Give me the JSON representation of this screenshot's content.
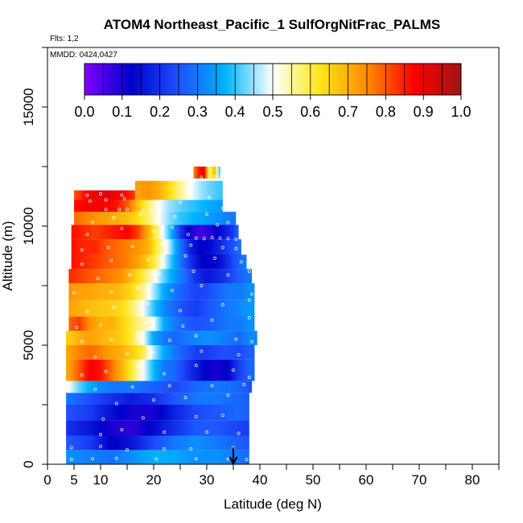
{
  "chart_data": {
    "type": "heatmap",
    "title": "ATOM4 Northeast_Pacific_1 SulfOrgNitFrac_PALMS",
    "flights_note": "Flts: 1,2",
    "dates_note": "MMDD: 0424,0427",
    "xlabel": "Latitude (deg N)",
    "ylabel": "Altitude (m)",
    "xlim": [
      0,
      85
    ],
    "ylim": [
      0,
      17500
    ],
    "x_ticks": [
      0,
      5,
      10,
      20,
      30,
      40,
      50,
      60,
      70,
      80
    ],
    "y_ticks": [
      0,
      5000,
      10000,
      15000
    ],
    "colorbar": {
      "range": [
        0,
        1
      ],
      "ticks": [
        "0.0",
        "0.1",
        "0.2",
        "0.3",
        "0.4",
        "0.5",
        "0.6",
        "0.7",
        "0.8",
        "0.9",
        "1.0"
      ],
      "colors": [
        "#7f00ff",
        "#0000c8",
        "#1e50ff",
        "#00b4ff",
        "#ffffff",
        "#ffe619",
        "#ff8c00",
        "#ff0000",
        "#a01414"
      ],
      "placement": "top, inside plot"
    },
    "marker": {
      "type": "arrow",
      "x": 35,
      "direction": "down"
    },
    "bands": [
      {
        "alt": [
          0,
          600
        ],
        "x": [
          3.5,
          38
        ],
        "lat": [
          4,
          8,
          12,
          16,
          20,
          24,
          28,
          32,
          36,
          38
        ],
        "val": [
          0.33,
          0.31,
          0.29,
          0.33,
          0.37,
          0.36,
          0.33,
          0.33,
          0.3,
          0.28
        ]
      },
      {
        "alt": [
          600,
          1200
        ],
        "x": [
          3.5,
          38
        ],
        "lat": [
          4,
          8,
          12,
          16,
          20,
          24,
          28,
          32,
          36,
          38
        ],
        "val": [
          0.26,
          0.22,
          0.12,
          0.16,
          0.24,
          0.3,
          0.33,
          0.3,
          0.27,
          0.25
        ]
      },
      {
        "alt": [
          1200,
          1850
        ],
        "x": [
          3.5,
          38
        ],
        "lat": [
          4,
          8,
          12,
          16,
          20,
          24,
          28,
          32,
          36,
          38
        ],
        "val": [
          0.2,
          0.16,
          0.1,
          0.08,
          0.14,
          0.2,
          0.26,
          0.26,
          0.23,
          0.22
        ]
      },
      {
        "alt": [
          1850,
          2500
        ],
        "x": [
          3.5,
          38
        ],
        "lat": [
          4,
          8,
          12,
          16,
          20,
          24,
          28,
          32,
          36,
          38
        ],
        "val": [
          0.25,
          0.22,
          0.15,
          0.1,
          0.1,
          0.18,
          0.24,
          0.26,
          0.28,
          0.26
        ]
      },
      {
        "alt": [
          2500,
          3000
        ],
        "x": [
          3.5,
          38
        ],
        "lat": [
          4,
          8,
          12,
          16,
          20,
          24,
          28,
          32,
          36,
          38
        ],
        "val": [
          0.3,
          0.25,
          0.2,
          0.17,
          0.2,
          0.26,
          0.3,
          0.3,
          0.28,
          0.26
        ]
      },
      {
        "alt": [
          3000,
          3500
        ],
        "x": [
          3.5,
          38.5
        ],
        "lat": [
          4,
          6,
          9,
          12,
          16,
          20,
          24,
          28,
          32,
          36,
          38
        ],
        "val": [
          0.5,
          0.42,
          0.34,
          0.3,
          0.3,
          0.27,
          0.24,
          0.28,
          0.3,
          0.28,
          0.25
        ]
      },
      {
        "alt": [
          3500,
          4400
        ],
        "x": [
          3.5,
          39
        ],
        "lat": [
          4,
          6,
          8,
          10,
          12,
          14,
          16,
          18,
          20,
          22,
          24,
          26,
          28,
          30,
          32,
          34,
          36,
          38
        ],
        "val": [
          0.72,
          0.8,
          0.88,
          0.86,
          0.78,
          0.7,
          0.6,
          0.5,
          0.38,
          0.3,
          0.28,
          0.22,
          0.17,
          0.12,
          0.1,
          0.13,
          0.22,
          0.28
        ]
      },
      {
        "alt": [
          4400,
          5000
        ],
        "x": [
          3.5,
          39
        ],
        "lat": [
          4,
          6,
          8,
          10,
          12,
          14,
          16,
          18,
          20,
          22,
          24,
          26,
          28,
          30,
          32,
          34,
          36,
          38
        ],
        "val": [
          0.72,
          0.76,
          0.78,
          0.76,
          0.72,
          0.7,
          0.66,
          0.6,
          0.46,
          0.36,
          0.3,
          0.26,
          0.22,
          0.22,
          0.24,
          0.25,
          0.24,
          0.27
        ]
      },
      {
        "alt": [
          5000,
          5600
        ],
        "x": [
          3.5,
          39.5
        ],
        "lat": [
          4,
          6,
          8,
          10,
          12,
          14,
          16,
          18,
          20,
          22,
          24,
          26,
          28,
          30,
          32,
          34,
          36,
          38
        ],
        "val": [
          0.66,
          0.7,
          0.72,
          0.7,
          0.68,
          0.66,
          0.6,
          0.5,
          0.36,
          0.3,
          0.28,
          0.3,
          0.32,
          0.33,
          0.32,
          0.3,
          0.28,
          0.32
        ]
      },
      {
        "alt": [
          5600,
          6200
        ],
        "x": [
          4,
          39
        ],
        "lat": [
          4,
          6,
          8,
          10,
          12,
          14,
          16,
          18,
          20,
          22,
          24,
          26,
          28,
          30,
          32,
          34,
          36,
          38
        ],
        "val": [
          0.78,
          0.82,
          0.74,
          0.7,
          0.7,
          0.66,
          0.6,
          0.55,
          0.5,
          0.36,
          0.3,
          0.27,
          0.25,
          0.26,
          0.28,
          0.3,
          0.3,
          0.33
        ]
      },
      {
        "alt": [
          6200,
          6900
        ],
        "x": [
          4,
          39
        ],
        "lat": [
          4,
          6,
          8,
          10,
          12,
          14,
          16,
          18,
          20,
          22,
          24,
          26,
          28,
          30,
          32,
          34,
          36,
          38
        ],
        "val": [
          0.72,
          0.7,
          0.68,
          0.67,
          0.66,
          0.64,
          0.58,
          0.5,
          0.4,
          0.32,
          0.28,
          0.24,
          0.22,
          0.25,
          0.28,
          0.3,
          0.32,
          0.34
        ]
      },
      {
        "alt": [
          6900,
          7600
        ],
        "x": [
          4,
          39
        ],
        "lat": [
          4,
          6,
          8,
          10,
          12,
          14,
          16,
          18,
          20,
          22,
          24,
          26,
          28,
          30,
          32,
          34,
          36,
          38
        ],
        "val": [
          0.74,
          0.72,
          0.72,
          0.7,
          0.7,
          0.68,
          0.64,
          0.56,
          0.46,
          0.36,
          0.3,
          0.26,
          0.23,
          0.24,
          0.27,
          0.3,
          0.3,
          0.33
        ]
      },
      {
        "alt": [
          7600,
          8200
        ],
        "x": [
          4,
          38.5
        ],
        "lat": [
          4,
          6,
          8,
          10,
          12,
          14,
          16,
          18,
          20,
          22,
          24,
          26,
          28,
          30,
          32,
          34,
          36,
          38
        ],
        "val": [
          0.84,
          0.82,
          0.8,
          0.78,
          0.76,
          0.74,
          0.68,
          0.6,
          0.52,
          0.42,
          0.34,
          0.28,
          0.2,
          0.16,
          0.18,
          0.22,
          0.27,
          0.3
        ]
      },
      {
        "alt": [
          8200,
          8800
        ],
        "x": [
          4.5,
          37.5
        ],
        "lat": [
          5,
          7,
          9,
          11,
          13,
          15,
          17,
          19,
          21,
          23,
          25,
          27,
          29,
          31,
          33,
          35,
          37
        ],
        "val": [
          0.86,
          0.84,
          0.82,
          0.8,
          0.78,
          0.76,
          0.72,
          0.66,
          0.55,
          0.42,
          0.3,
          0.2,
          0.13,
          0.12,
          0.16,
          0.24,
          0.3
        ]
      },
      {
        "alt": [
          8800,
          9450
        ],
        "x": [
          4.5,
          36.5
        ],
        "lat": [
          5,
          7,
          9,
          11,
          13,
          15,
          17,
          19,
          21,
          23,
          25,
          27,
          29,
          31,
          33,
          35,
          36.5
        ],
        "val": [
          0.86,
          0.84,
          0.84,
          0.8,
          0.78,
          0.76,
          0.74,
          0.7,
          0.58,
          0.46,
          0.3,
          0.17,
          0.12,
          0.15,
          0.2,
          0.25,
          0.3
        ]
      },
      {
        "alt": [
          9450,
          10050
        ],
        "x": [
          4.5,
          36
        ],
        "lat": [
          5,
          7,
          9,
          11,
          13,
          15,
          17,
          19,
          21,
          23,
          25,
          27,
          29,
          31,
          33,
          35,
          36
        ],
        "val": [
          0.86,
          0.84,
          0.82,
          0.84,
          0.86,
          0.88,
          0.82,
          0.7,
          0.55,
          0.4,
          0.22,
          0.1,
          0.06,
          0.1,
          0.15,
          0.22,
          0.28
        ]
      },
      {
        "alt": [
          10050,
          10600
        ],
        "x": [
          5,
          35.5
        ],
        "lat": [
          5,
          7,
          9,
          11,
          13,
          15,
          17,
          19,
          21,
          23,
          25,
          27,
          29,
          31,
          33,
          35
        ],
        "val": [
          0.78,
          0.76,
          0.74,
          0.72,
          0.7,
          0.68,
          0.64,
          0.58,
          0.5,
          0.44,
          0.4,
          0.38,
          0.36,
          0.34,
          0.32,
          0.3
        ]
      },
      {
        "alt": [
          10600,
          11100
        ],
        "x": [
          5,
          33
        ],
        "lat": [
          5,
          7,
          9,
          11,
          13,
          15,
          17,
          19,
          21,
          23,
          25,
          27,
          29,
          31,
          33
        ],
        "val": [
          0.86,
          0.88,
          0.9,
          0.88,
          0.86,
          0.8,
          0.68,
          0.58,
          0.5,
          0.45,
          0.42,
          0.4,
          0.38,
          0.36,
          0.34
        ]
      },
      {
        "alt": [
          11100,
          11500
        ],
        "x": [
          5,
          16.5
        ],
        "lat": [
          5,
          7,
          9,
          11,
          13,
          15,
          16.5
        ],
        "val": [
          0.8,
          0.86,
          0.9,
          0.92,
          0.9,
          0.86,
          0.82
        ]
      },
      {
        "alt": [
          11100,
          11900
        ],
        "x": [
          16.5,
          33
        ],
        "lat": [
          17,
          19,
          21,
          23,
          25,
          27,
          29,
          31,
          33
        ],
        "val": [
          0.72,
          0.74,
          0.7,
          0.64,
          0.56,
          0.5,
          0.45,
          0.42,
          0.4
        ]
      },
      {
        "alt": [
          12000,
          12500
        ],
        "x": [
          27.5,
          32.5
        ],
        "lat": [
          27.5,
          28.5,
          29.5,
          30.5,
          31.5,
          32.5
        ],
        "val": [
          0.75,
          0.85,
          0.9,
          0.55,
          0.7,
          0.35
        ]
      }
    ],
    "samples": [
      [
        4.5,
        200
      ],
      [
        8.5,
        230
      ],
      [
        13,
        250
      ],
      [
        20.5,
        220
      ],
      [
        28,
        230
      ],
      [
        34,
        220
      ],
      [
        37.5,
        200
      ],
      [
        4.5,
        700
      ],
      [
        10,
        750
      ],
      [
        15,
        600
      ],
      [
        22,
        650
      ],
      [
        27,
        650
      ],
      [
        35,
        700
      ],
      [
        10,
        1250
      ],
      [
        14,
        1450
      ],
      [
        22,
        1350
      ],
      [
        30,
        1350
      ],
      [
        36,
        1300
      ],
      [
        10.5,
        1900
      ],
      [
        18,
        1950
      ],
      [
        28,
        2000
      ],
      [
        33,
        2050
      ],
      [
        13,
        2550
      ],
      [
        20,
        2700
      ],
      [
        26,
        2800
      ],
      [
        34,
        2900
      ],
      [
        9,
        3150
      ],
      [
        16,
        3250
      ],
      [
        23,
        3300
      ],
      [
        31,
        3300
      ],
      [
        37,
        3350
      ],
      [
        6.5,
        3750
      ],
      [
        11,
        3900
      ],
      [
        17,
        4050
      ],
      [
        22,
        3800
      ],
      [
        28,
        4150
      ],
      [
        35,
        3950
      ],
      [
        38,
        3650
      ],
      [
        9,
        4500
      ],
      [
        15,
        4650
      ],
      [
        20,
        4700
      ],
      [
        29,
        4750
      ],
      [
        36,
        4600
      ],
      [
        6.5,
        5150
      ],
      [
        12,
        5250
      ],
      [
        17,
        5350
      ],
      [
        23,
        5200
      ],
      [
        28,
        5400
      ],
      [
        35.5,
        5250
      ],
      [
        38.5,
        5150
      ],
      [
        5.5,
        5750
      ],
      [
        10,
        5850
      ],
      [
        18.5,
        5950
      ],
      [
        25.5,
        5800
      ],
      [
        31,
        6050
      ],
      [
        38,
        6150
      ],
      [
        7.5,
        6400
      ],
      [
        12.5,
        6600
      ],
      [
        19,
        6750
      ],
      [
        25,
        6450
      ],
      [
        33,
        6700
      ],
      [
        38,
        6900
      ],
      [
        5,
        7200
      ],
      [
        12,
        7250
      ],
      [
        17,
        7400
      ],
      [
        23.5,
        7300
      ],
      [
        29,
        7500
      ],
      [
        38.5,
        7150
      ],
      [
        9.5,
        7800
      ],
      [
        15.5,
        7950
      ],
      [
        21,
        8000
      ],
      [
        27.5,
        8100
      ],
      [
        34,
        7950
      ],
      [
        38,
        8100
      ],
      [
        6.5,
        8400
      ],
      [
        12,
        8550
      ],
      [
        19,
        8600
      ],
      [
        26,
        8750
      ],
      [
        31.5,
        8650
      ],
      [
        36.5,
        8500
      ],
      [
        6.5,
        9000
      ],
      [
        11.5,
        9100
      ],
      [
        16,
        9150
      ],
      [
        21.5,
        9250
      ],
      [
        27,
        9200
      ],
      [
        33,
        9100
      ],
      [
        35.5,
        9050
      ],
      [
        28,
        9500
      ],
      [
        29.5,
        9480
      ],
      [
        31,
        9520
      ],
      [
        32.5,
        9500
      ],
      [
        34,
        9480
      ],
      [
        35.5,
        9450
      ],
      [
        7.5,
        9650
      ],
      [
        14,
        9900
      ],
      [
        20,
        9800
      ],
      [
        23.5,
        9950
      ],
      [
        32,
        10050
      ],
      [
        26.5,
        9650
      ],
      [
        8.5,
        10150
      ],
      [
        12.5,
        10350
      ],
      [
        17.5,
        10500
      ],
      [
        24,
        10400
      ],
      [
        30,
        10500
      ],
      [
        34,
        10150
      ],
      [
        11,
        10700
      ],
      [
        13.5,
        10700
      ],
      [
        15,
        10700
      ],
      [
        18,
        10650
      ],
      [
        19.5,
        10700
      ],
      [
        33,
        10750
      ],
      [
        8,
        11050
      ],
      [
        11,
        11100
      ],
      [
        14.5,
        11150
      ],
      [
        25,
        11000
      ],
      [
        30.5,
        11200
      ],
      [
        7.5,
        11300
      ],
      [
        10,
        11350
      ],
      [
        14,
        11300
      ],
      [
        29,
        12050
      ],
      [
        31.5,
        12100
      ],
      [
        32.5,
        12050
      ]
    ]
  }
}
